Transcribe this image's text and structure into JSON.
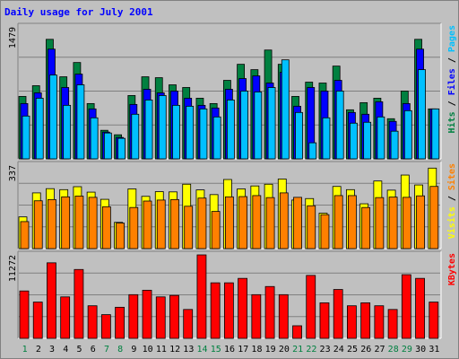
{
  "chart_data": {
    "type": "bar",
    "title": "Daily usage for July 2001",
    "categories": [
      "1",
      "2",
      "3",
      "4",
      "5",
      "6",
      "7",
      "8",
      "9",
      "10",
      "11",
      "12",
      "13",
      "14",
      "15",
      "16",
      "17",
      "18",
      "19",
      "20",
      "21",
      "22",
      "23",
      "24",
      "25",
      "26",
      "27",
      "28",
      "29",
      "30",
      "31"
    ],
    "weekend_days": [
      "1",
      "7",
      "8",
      "14",
      "15",
      "21",
      "22",
      "28",
      "29"
    ],
    "panels": [
      {
        "id": "top",
        "ymax": 1479,
        "ymax_label": "1479",
        "right_labels": [
          {
            "text": "Hits",
            "color": "#008040"
          },
          {
            "text": " / ",
            "color": "#000000"
          },
          {
            "text": "Files",
            "color": "#0000ff"
          },
          {
            "text": " / ",
            "color": "#000000"
          },
          {
            "text": "Pages",
            "color": "#00c0ff"
          }
        ],
        "series": [
          {
            "name": "Hits",
            "color": "#008040",
            "values": [
              700,
              820,
              1340,
              920,
              1080,
              620,
              320,
              270,
              710,
              920,
              910,
              830,
              800,
              680,
              620,
              880,
              1060,
              1000,
              1220,
              1060,
              700,
              860,
              850,
              1040,
              550,
              630,
              680,
              450,
              760,
              1340,
              560
            ]
          },
          {
            "name": "Files",
            "color": "#0000ff",
            "values": [
              620,
              740,
              1230,
              800,
              950,
              560,
              300,
              240,
              610,
              780,
              740,
              760,
              680,
              600,
              570,
              780,
              900,
              930,
              850,
              970,
              590,
              800,
              760,
              880,
              520,
              500,
              640,
              420,
              620,
              1230,
              560
            ]
          },
          {
            "name": "Pages",
            "color": "#00c0ff",
            "values": [
              480,
              680,
              940,
              600,
              830,
              460,
              290,
              230,
              500,
              660,
              710,
              600,
              590,
              560,
              470,
              660,
              760,
              750,
              800,
              1110,
              520,
              180,
              460,
              760,
              400,
              410,
              470,
              310,
              540,
              1000,
              560
            ]
          }
        ]
      },
      {
        "id": "middle",
        "ymax": 337,
        "ymax_label": "337",
        "right_labels": [
          {
            "text": "Visits",
            "color": "#ffff00"
          },
          {
            "text": " / ",
            "color": "#000000"
          },
          {
            "text": "Sites",
            "color": "#ff8000"
          }
        ],
        "series": [
          {
            "name": "Visits",
            "color": "#ffff00",
            "values": [
              128,
              225,
              242,
              238,
              250,
              228,
              199,
              106,
              241,
              211,
              230,
              229,
              260,
              237,
              218,
              279,
              241,
              253,
              260,
              281,
              196,
              202,
              143,
              251,
              238,
              181,
              273,
              236,
              297,
              257,
              325
            ]
          },
          {
            "name": "Sites",
            "color": "#ff8000",
            "values": [
              109,
              193,
              198,
              209,
              212,
              207,
              169,
              103,
              166,
              192,
              196,
              198,
              171,
              204,
              150,
              209,
              210,
              214,
              206,
              225,
              207,
              173,
              137,
              214,
              214,
              166,
              206,
              208,
              207,
              213,
              251
            ]
          }
        ]
      },
      {
        "id": "bottom",
        "ymax": 11272,
        "ymax_label": "11272",
        "right_labels": [
          {
            "text": "KBytes",
            "color": "#ff0000"
          }
        ],
        "series": [
          {
            "name": "KBytes",
            "color": "#ff0000",
            "values": [
              6400,
              4900,
              10200,
              5600,
              9300,
              4400,
              3200,
              4200,
              5900,
              6500,
              5600,
              5800,
              3900,
              11272,
              7500,
              7500,
              8100,
              5900,
              7000,
              5900,
              1700,
              8500,
              4800,
              6600,
              4400,
              4800,
              4400,
              3900,
              8600,
              8100,
              4900
            ]
          }
        ]
      }
    ]
  }
}
